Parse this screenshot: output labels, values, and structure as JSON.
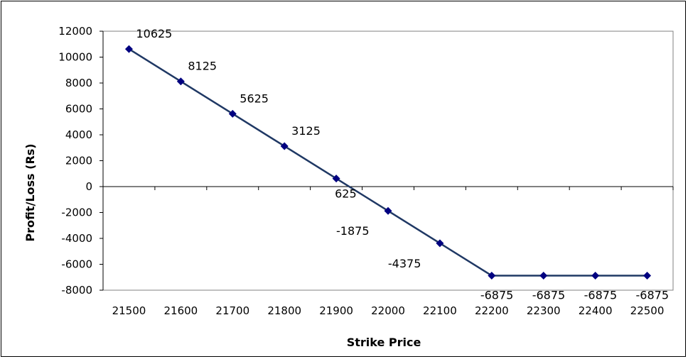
{
  "chart_data": {
    "type": "line",
    "title": "",
    "xlabel": "Strike Price",
    "ylabel": "Profit/Loss  (Rs)",
    "x": [
      21500,
      21600,
      21700,
      21800,
      21900,
      22000,
      22100,
      22200,
      22300,
      22400,
      22500
    ],
    "series": [
      {
        "values": [
          10625,
          8125,
          5625,
          3125,
          625,
          -1875,
          -4375,
          -6875,
          -6875,
          -6875,
          -6875
        ]
      }
    ],
    "ylim": [
      -8000,
      12000
    ],
    "yticks": [
      12000,
      10000,
      8000,
      6000,
      4000,
      2000,
      0,
      -2000,
      -4000,
      -6000,
      -8000
    ],
    "grid": false,
    "legend": "none",
    "colors": {
      "line": "#1f3864",
      "marker": "#000080",
      "plot_border": "#808080",
      "axis": "#000000"
    }
  }
}
